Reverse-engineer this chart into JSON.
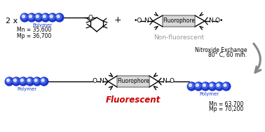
{
  "bg_color": "#ffffff",
  "polymer_color_dark": "#1a35cc",
  "polymer_color_light": "#5577ee",
  "polymer_color_white": "#ffffff",
  "text_color": "#000000",
  "gray_color": "#999999",
  "red_color": "#cc0000",
  "arrow_color": "#888888",
  "label_2x": "2 x",
  "label_polymer": "Polymer",
  "label_mn1": "Mn = 35,600",
  "label_mp1": "Mp = 36,700",
  "label_plus": "+",
  "label_non_fluor": "Non-fluorescent",
  "label_nitroxide": "Nitroxide Exchange",
  "label_conditions": "80° C, 60 min.",
  "label_fluorophore": "Fluorophore",
  "label_fluorescent": "Fluorescent",
  "label_mn2": "Mn = 63,700",
  "label_mp2": "Mp = 70,200",
  "box_fill": "#d8d8d8",
  "box_edge": "#888888",
  "struct_lw": 1.0,
  "methyl_lw": 0.9
}
